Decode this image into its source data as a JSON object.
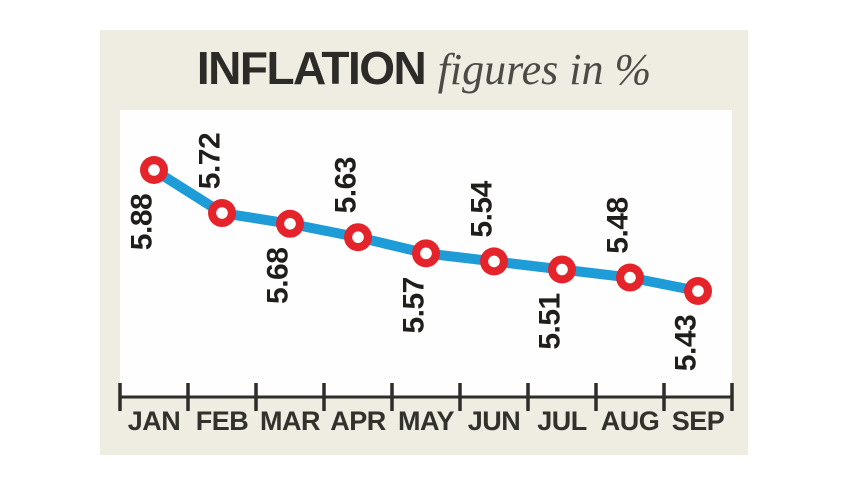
{
  "card": {
    "title_main": "INFLATION",
    "title_sub": "figures in %"
  },
  "chart_data": {
    "type": "line",
    "title": "INFLATION figures in %",
    "unit": "%",
    "categories": [
      "JAN",
      "FEB",
      "MAR",
      "APR",
      "MAY",
      "JUN",
      "JUL",
      "AUG",
      "SEP"
    ],
    "values": [
      5.88,
      5.72,
      5.68,
      5.63,
      5.57,
      5.54,
      5.51,
      5.48,
      5.43
    ],
    "value_labels": [
      "5.88",
      "5.72",
      "5.68",
      "5.63",
      "5.57",
      "5.54",
      "5.51",
      "5.48",
      "5.43"
    ],
    "label_positions": [
      "below",
      "above",
      "below",
      "above",
      "below",
      "above",
      "below",
      "above",
      "below"
    ],
    "label_rotation_deg": -90,
    "xlabel": "",
    "ylabel": "",
    "ylim": [
      5.4,
      5.9
    ],
    "grid": false,
    "legend": false,
    "colors": {
      "line": "#1e9cd8",
      "marker": "#e5232b",
      "marker_hole": "#ffffff",
      "value_text": "#1f1e1b",
      "axis": "#2f2d29",
      "month_text": "#33312c",
      "plot_background": "#fefefe",
      "card_background": "#efece2"
    }
  }
}
